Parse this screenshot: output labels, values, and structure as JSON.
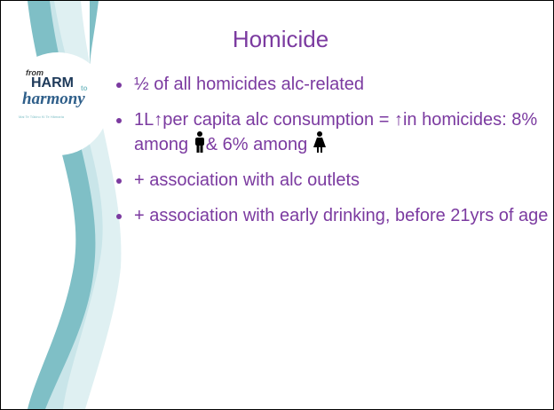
{
  "logo": {
    "from": "from",
    "harm": "HARM",
    "to": "to",
    "harmony": "harmony",
    "tagline": "Mai Te Tūkino Ki Te Hāmaria"
  },
  "title": "Homicide",
  "bullets": [
    {
      "text": "½ of all homicides alc-related"
    },
    {
      "parts": [
        "1L↑per capita alc consumption = ↑in homicides: 8% among",
        "& 6% among"
      ]
    },
    {
      "text": "+ association with alc outlets"
    },
    {
      "text": "+ association with early drinking, before 21yrs of age"
    }
  ]
}
